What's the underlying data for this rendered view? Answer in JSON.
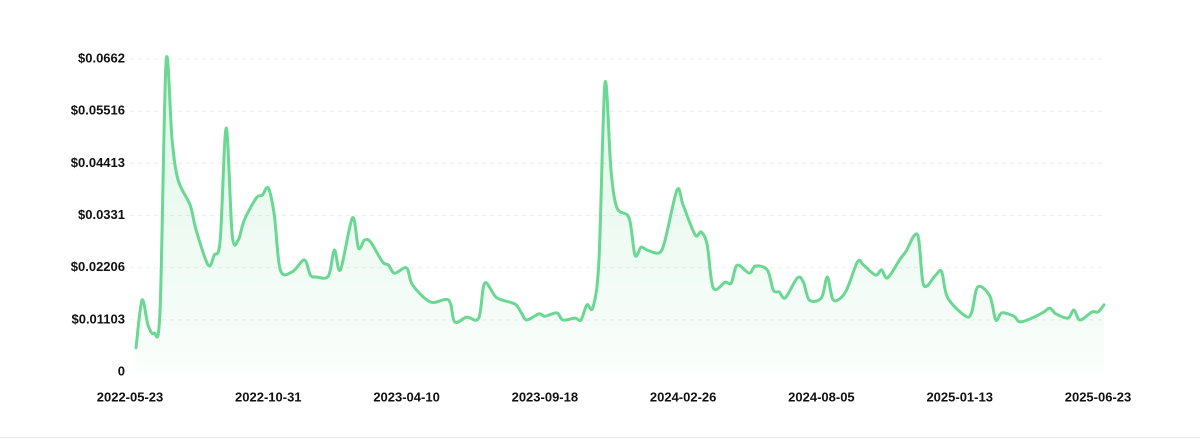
{
  "chart_data": {
    "type": "line",
    "color": "#6ad792",
    "grid": true,
    "x": [
      "2022-05-30",
      "2022-06-06",
      "2022-06-13",
      "2022-06-20",
      "2022-06-27",
      "2022-07-04",
      "2022-07-11",
      "2022-07-18",
      "2022-08-01",
      "2022-08-08",
      "2022-08-22",
      "2022-08-29",
      "2022-09-05",
      "2022-09-12",
      "2022-09-19",
      "2022-09-26",
      "2022-10-03",
      "2022-10-17",
      "2022-10-24",
      "2022-10-31",
      "2022-11-07",
      "2022-11-14",
      "2022-11-28",
      "2022-12-12",
      "2022-12-19",
      "2022-12-26",
      "2023-01-09",
      "2023-01-16",
      "2023-01-23",
      "2023-02-06",
      "2023-02-13",
      "2023-02-20",
      "2023-02-27",
      "2023-03-13",
      "2023-03-20",
      "2023-03-27",
      "2023-04-10",
      "2023-04-17",
      "2023-05-08",
      "2023-05-29",
      "2023-06-05",
      "2023-06-19",
      "2023-07-03",
      "2023-07-10",
      "2023-07-24",
      "2023-08-14",
      "2023-08-21",
      "2023-08-28",
      "2023-09-11",
      "2023-09-18",
      "2023-10-02",
      "2023-10-09",
      "2023-10-23",
      "2023-10-30",
      "2023-11-06",
      "2023-11-13",
      "2023-11-20",
      "2023-11-27",
      "2023-12-04",
      "2023-12-11",
      "2023-12-25",
      "2024-01-01",
      "2024-01-08",
      "2024-01-15",
      "2024-01-29",
      "2024-02-05",
      "2024-02-19",
      "2024-02-26",
      "2024-03-11",
      "2024-03-18",
      "2024-03-25",
      "2024-04-01",
      "2024-04-15",
      "2024-04-22",
      "2024-04-29",
      "2024-05-13",
      "2024-05-20",
      "2024-06-03",
      "2024-06-10",
      "2024-06-17",
      "2024-06-24",
      "2024-07-08",
      "2024-07-15",
      "2024-07-22",
      "2024-08-05",
      "2024-08-12",
      "2024-08-19",
      "2024-09-02",
      "2024-09-16",
      "2024-09-23",
      "2024-10-07",
      "2024-10-14",
      "2024-10-21",
      "2024-11-04",
      "2024-11-11",
      "2024-11-25",
      "2024-12-02",
      "2024-12-16",
      "2024-12-23",
      "2024-12-30",
      "2025-01-20",
      "2025-01-27",
      "2025-02-03",
      "2025-02-17",
      "2025-02-24",
      "2025-03-03",
      "2025-03-17",
      "2025-03-24",
      "2025-04-07",
      "2025-04-21",
      "2025-04-28",
      "2025-05-05",
      "2025-05-19",
      "2025-05-26",
      "2025-06-02",
      "2025-06-16",
      "2025-06-23",
      "2025-06-30"
    ],
    "values": [
      0.0051,
      0.0152,
      0.0099,
      0.0082,
      0.0131,
      0.0656,
      0.0491,
      0.0406,
      0.0353,
      0.03,
      0.0226,
      0.0247,
      0.0279,
      0.0516,
      0.029,
      0.0279,
      0.0321,
      0.0368,
      0.0374,
      0.0389,
      0.0332,
      0.0216,
      0.0212,
      0.0237,
      0.0205,
      0.0201,
      0.0203,
      0.0258,
      0.0216,
      0.0326,
      0.0262,
      0.0279,
      0.0275,
      0.0233,
      0.0226,
      0.0209,
      0.022,
      0.0184,
      0.0148,
      0.0152,
      0.0106,
      0.0116,
      0.0114,
      0.0188,
      0.0157,
      0.0144,
      0.0127,
      0.011,
      0.0123,
      0.0118,
      0.0125,
      0.011,
      0.0114,
      0.011,
      0.0142,
      0.0137,
      0.0237,
      0.0611,
      0.0427,
      0.0347,
      0.0326,
      0.0247,
      0.0264,
      0.0258,
      0.0252,
      0.0279,
      0.0385,
      0.0353,
      0.029,
      0.0296,
      0.0269,
      0.0178,
      0.019,
      0.0188,
      0.0226,
      0.0209,
      0.0224,
      0.0216,
      0.0173,
      0.0169,
      0.0157,
      0.0199,
      0.019,
      0.0152,
      0.0157,
      0.0201,
      0.0152,
      0.0169,
      0.0233,
      0.0226,
      0.0205,
      0.0216,
      0.0199,
      0.0237,
      0.0254,
      0.029,
      0.0184,
      0.0205,
      0.0212,
      0.0157,
      0.0118,
      0.0127,
      0.018,
      0.0161,
      0.011,
      0.0125,
      0.0118,
      0.0106,
      0.0114,
      0.0127,
      0.0135,
      0.0123,
      0.0114,
      0.0131,
      0.011,
      0.0127,
      0.0127,
      0.0142
    ],
    "xlim": [
      "2022-05-23",
      "2025-06-30"
    ],
    "xticks": [
      "2022-05-23",
      "2022-10-31",
      "2023-04-10",
      "2023-09-18",
      "2024-02-26",
      "2024-08-05",
      "2025-01-13",
      "2025-06-23"
    ],
    "ylim": [
      0,
      0.0662
    ],
    "yticks": [
      0,
      {
        "value": 0.01103,
        "label": "$0.01103"
      },
      {
        "value": 0.02206,
        "label": "$0.02206"
      },
      {
        "value": 0.0331,
        "label": "$0.0331"
      },
      {
        "value": 0.04413,
        "label": "$0.04413"
      },
      {
        "value": 0.05516,
        "label": "$0.05516"
      },
      {
        "value": 0.0662,
        "label": "$0.0662"
      }
    ]
  }
}
